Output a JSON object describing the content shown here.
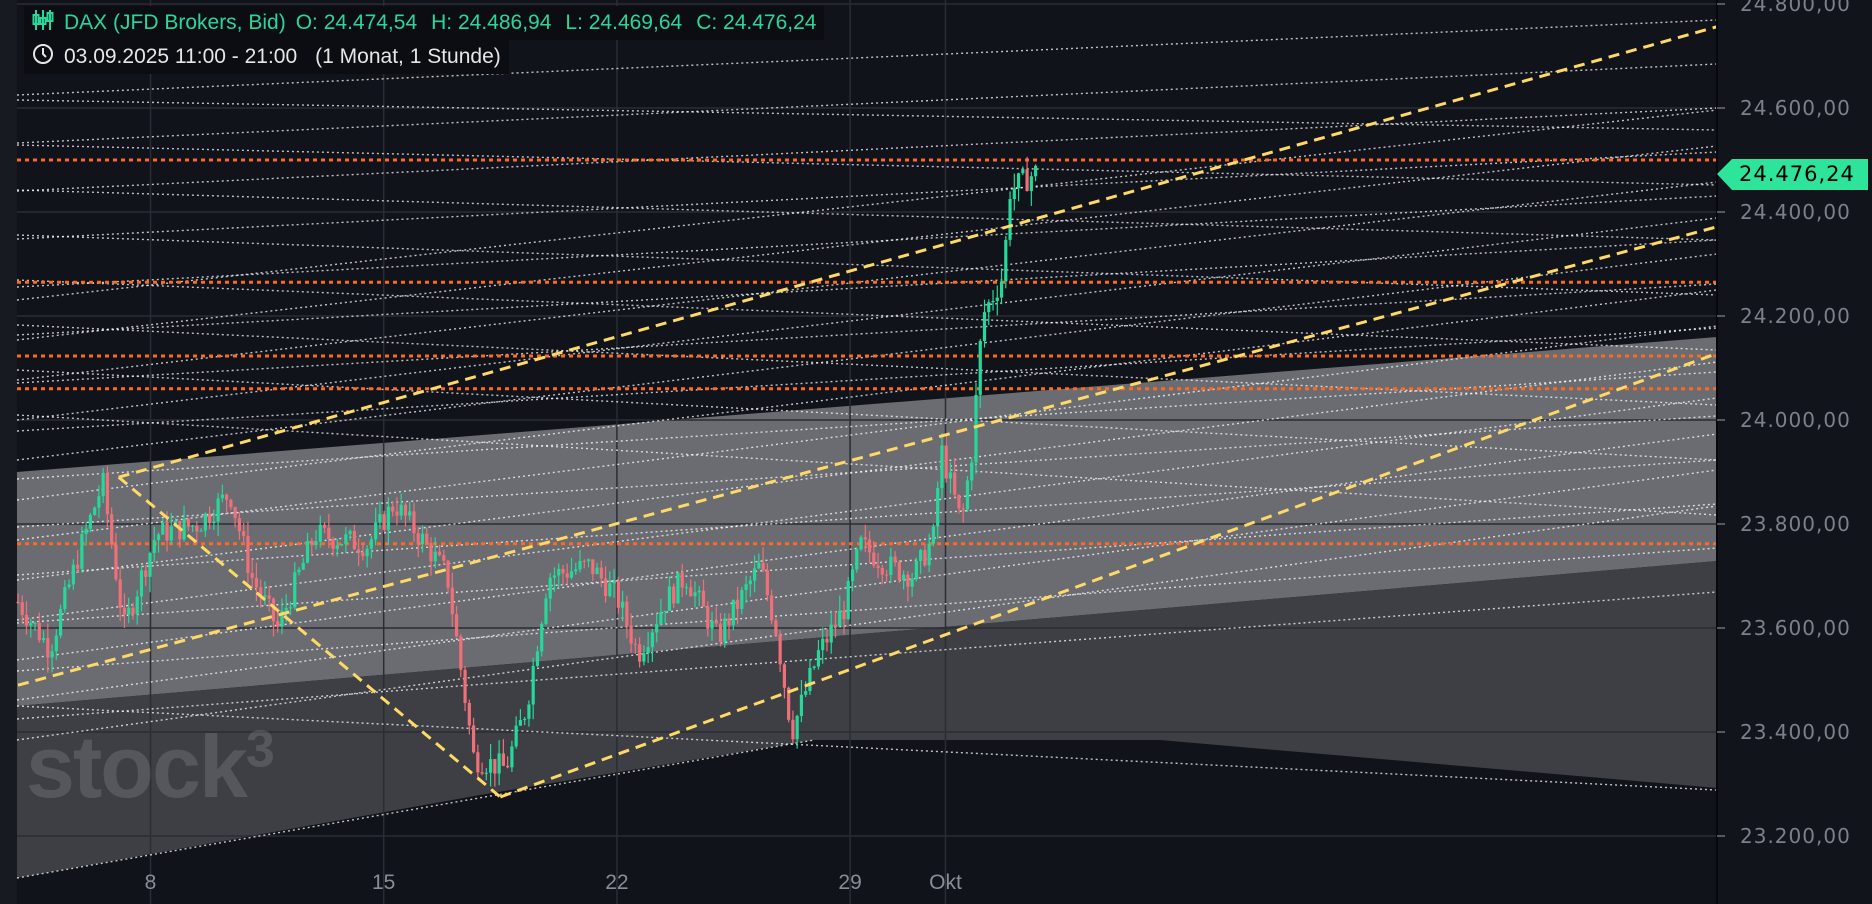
{
  "header": {
    "instrument": "DAX (JFD Brokers, Bid)",
    "open": "O: 24.474,54",
    "high": "H: 24.486,94",
    "low": "L: 24.469,64",
    "close": "C: 24.476,24",
    "time_range": "03.09.2025 11:00 - 21:00",
    "period": "(1 Monat, 1 Stunde)"
  },
  "watermark": "stock³",
  "current_price_label": "24.476,24",
  "colors": {
    "up": "#26d89a",
    "down": "#f0707a",
    "accent": "#2ee39a",
    "support": "#ff6a1f",
    "trend": "#ffd966"
  },
  "chart_data": {
    "type": "candlestick",
    "title": "DAX (JFD Brokers, Bid)",
    "ylim": [
      23100,
      24800
    ],
    "y_ticks": [
      {
        "value": 24800,
        "label": "24.800,00"
      },
      {
        "value": 24600,
        "label": "24.600,00"
      },
      {
        "value": 24400,
        "label": "24.400,00"
      },
      {
        "value": 24200,
        "label": "24.200,00"
      },
      {
        "value": 24000,
        "label": "24.000,00"
      },
      {
        "value": 23800,
        "label": "23.800,00"
      },
      {
        "value": 23600,
        "label": "23.600,00"
      },
      {
        "value": 23400,
        "label": "23.400,00"
      },
      {
        "value": 23200,
        "label": "23.200,00"
      }
    ],
    "x_ticks": [
      {
        "label": "8",
        "t": 0.125
      },
      {
        "label": "15",
        "t": 0.345
      },
      {
        "label": "22",
        "t": 0.565
      },
      {
        "label": "29",
        "t": 0.785
      },
      {
        "label": "Okt",
        "t": 0.875
      }
    ],
    "price_path": [
      [
        0.0,
        23650
      ],
      [
        0.03,
        23560
      ],
      [
        0.06,
        23760
      ],
      [
        0.08,
        23880
      ],
      [
        0.1,
        23600
      ],
      [
        0.13,
        23780
      ],
      [
        0.17,
        23800
      ],
      [
        0.2,
        23860
      ],
      [
        0.22,
        23700
      ],
      [
        0.245,
        23600
      ],
      [
        0.28,
        23780
      ],
      [
        0.33,
        23760
      ],
      [
        0.355,
        23840
      ],
      [
        0.385,
        23760
      ],
      [
        0.405,
        23700
      ],
      [
        0.43,
        23350
      ],
      [
        0.46,
        23330
      ],
      [
        0.48,
        23450
      ],
      [
        0.5,
        23700
      ],
      [
        0.54,
        23720
      ],
      [
        0.565,
        23660
      ],
      [
        0.585,
        23550
      ],
      [
        0.61,
        23650
      ],
      [
        0.63,
        23700
      ],
      [
        0.66,
        23580
      ],
      [
        0.7,
        23720
      ],
      [
        0.715,
        23600
      ],
      [
        0.73,
        23400
      ],
      [
        0.755,
        23550
      ],
      [
        0.78,
        23640
      ],
      [
        0.795,
        23760
      ],
      [
        0.82,
        23720
      ],
      [
        0.845,
        23700
      ],
      [
        0.865,
        23780
      ],
      [
        0.87,
        23950
      ],
      [
        0.89,
        23800
      ],
      [
        0.9,
        23940
      ],
      [
        0.91,
        24200
      ],
      [
        0.925,
        24260
      ],
      [
        0.93,
        24280
      ],
      [
        0.935,
        24440
      ],
      [
        0.96,
        24476
      ]
    ],
    "current_price": 24476.24,
    "horizontal_levels": [
      24500,
      24265,
      24123,
      24060,
      23762
    ],
    "trendlines": [
      {
        "from": [
          0.095,
          23890
        ],
        "to": [
          1.0,
          24410
        ]
      },
      {
        "from": [
          0.0,
          23490
        ],
        "to": [
          1.0,
          24040
        ]
      },
      {
        "from": [
          0.455,
          23275
        ],
        "to": [
          1.0,
          23680
        ]
      },
      {
        "from": [
          0.095,
          23890
        ],
        "to": [
          0.455,
          23275
        ]
      }
    ]
  }
}
